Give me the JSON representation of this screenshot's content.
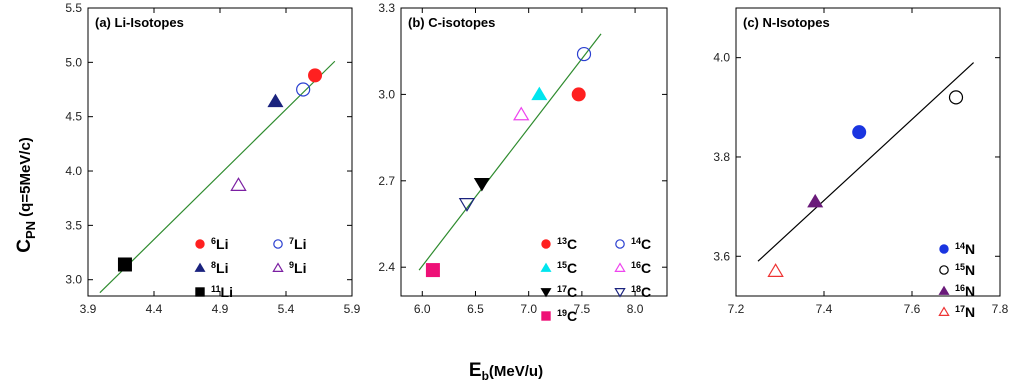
{
  "figure": {
    "ylabel": "C",
    "ylabel_sub": "PN",
    "ylabel_rest": " (q=5MeV/c)",
    "xlabel": "E",
    "xlabel_sub": "b",
    "xlabel_rest": "(MeV/u)"
  },
  "chart_data": [
    {
      "type": "scatter",
      "title": "(a) Li-Isotopes",
      "xlim": [
        3.9,
        5.9
      ],
      "ylim": [
        2.85,
        5.5
      ],
      "xticks": [
        3.9,
        4.4,
        4.9,
        5.4,
        5.9
      ],
      "xtick_labels": [
        "3.9",
        "4.4",
        "4.9",
        "5.4",
        "5.9"
      ],
      "yticks": [
        3.0,
        3.5,
        4.0,
        4.5,
        5.0,
        5.5
      ],
      "ytick_labels": [
        "3.0",
        "3.5",
        "4.0",
        "4.5",
        "5.0",
        "5.5"
      ],
      "fit_line": {
        "color": "#2e8b2e",
        "x": [
          3.99,
          5.77
        ],
        "y": [
          2.88,
          5.01
        ]
      },
      "series": [
        {
          "name": "6",
          "element": "Li",
          "marker": "circle",
          "filled": true,
          "color": "#ff2020",
          "x": 5.62,
          "y": 4.88
        },
        {
          "name": "7",
          "element": "Li",
          "marker": "circle",
          "filled": false,
          "color": "#2a3fd0",
          "x": 5.53,
          "y": 4.75
        },
        {
          "name": "8",
          "element": "Li",
          "marker": "triangle-up",
          "filled": true,
          "color": "#1a237e",
          "x": 5.32,
          "y": 4.64
        },
        {
          "name": "9",
          "element": "Li",
          "marker": "triangle-up",
          "filled": false,
          "color": "#7b1fa2",
          "x": 5.04,
          "y": 3.87
        },
        {
          "name": "11",
          "element": "Li",
          "marker": "square",
          "filled": true,
          "color": "#000000",
          "x": 4.18,
          "y": 3.14
        }
      ]
    },
    {
      "type": "scatter",
      "title": "(b) C-isotopes",
      "xlim": [
        5.8,
        8.3
      ],
      "ylim": [
        2.3,
        3.3
      ],
      "xticks": [
        6.0,
        6.5,
        7.0,
        7.5,
        8.0
      ],
      "xtick_labels": [
        "6.0",
        "6.5",
        "7.0",
        "7.5",
        "8.0"
      ],
      "yticks": [
        2.4,
        2.7,
        3.0,
        3.3
      ],
      "ytick_labels": [
        "2.4",
        "2.7",
        "3.0",
        "3.3"
      ],
      "fit_line": {
        "color": "#2e8b2e",
        "x": [
          5.97,
          7.68
        ],
        "y": [
          2.39,
          3.21
        ]
      },
      "series": [
        {
          "name": "13",
          "element": "C",
          "marker": "circle",
          "filled": true,
          "color": "#ff2020",
          "x": 7.47,
          "y": 3.0
        },
        {
          "name": "14",
          "element": "C",
          "marker": "circle",
          "filled": false,
          "color": "#2a3fd0",
          "x": 7.52,
          "y": 3.14
        },
        {
          "name": "15",
          "element": "C",
          "marker": "triangle-up",
          "filled": true,
          "color": "#00e5ee",
          "x": 7.1,
          "y": 3.0
        },
        {
          "name": "16",
          "element": "C",
          "marker": "triangle-up",
          "filled": false,
          "color": "#ee44ee",
          "x": 6.93,
          "y": 2.93
        },
        {
          "name": "17",
          "element": "C",
          "marker": "triangle-down",
          "filled": true,
          "color": "#000000",
          "x": 6.56,
          "y": 2.69
        },
        {
          "name": "18",
          "element": "C",
          "marker": "triangle-down",
          "filled": false,
          "color": "#1a237e",
          "x": 6.42,
          "y": 2.62
        },
        {
          "name": "19",
          "element": "C",
          "marker": "square",
          "filled": true,
          "color": "#ee1177",
          "x": 6.1,
          "y": 2.39
        }
      ]
    },
    {
      "type": "scatter",
      "title": "(c) N-Isotopes",
      "xlim": [
        7.2,
        7.8
      ],
      "ylim": [
        3.52,
        4.1
      ],
      "xticks": [
        7.2,
        7.4,
        7.6,
        7.8
      ],
      "xtick_labels": [
        "7.2",
        "7.4",
        "7.6",
        "7.8"
      ],
      "yticks": [
        3.6,
        3.8,
        4.0
      ],
      "ytick_labels": [
        "3.6",
        "3.8",
        "4.0"
      ],
      "fit_line": {
        "color": "#000000",
        "x": [
          7.25,
          7.74
        ],
        "y": [
          3.59,
          3.99
        ]
      },
      "series": [
        {
          "name": "14",
          "element": "N",
          "marker": "circle",
          "filled": true,
          "color": "#1a35e0",
          "x": 7.48,
          "y": 3.85
        },
        {
          "name": "15",
          "element": "N",
          "marker": "circle",
          "filled": false,
          "color": "#000000",
          "x": 7.7,
          "y": 3.92
        },
        {
          "name": "16",
          "element": "N",
          "marker": "triangle-up",
          "filled": true,
          "color": "#6a1b7a",
          "x": 7.38,
          "y": 3.71
        },
        {
          "name": "17",
          "element": "N",
          "marker": "triangle-up",
          "filled": false,
          "color": "#ee3333",
          "x": 7.29,
          "y": 3.57
        }
      ]
    }
  ]
}
